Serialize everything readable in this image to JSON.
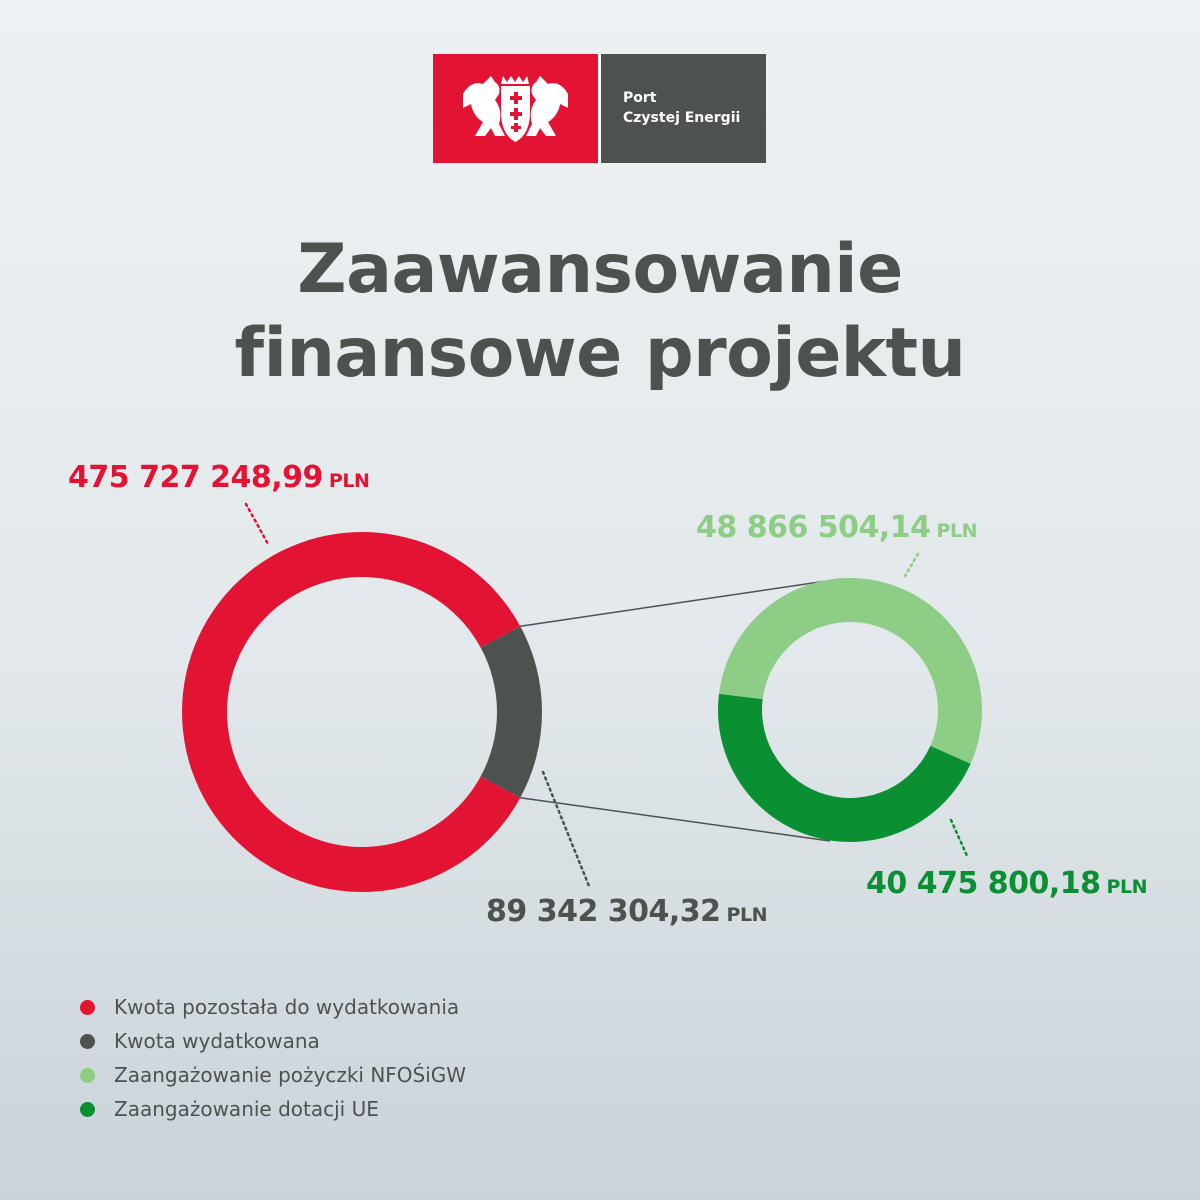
{
  "logo": {
    "line1": "Port",
    "line2": "Czystej Energii",
    "crest_icon": "gdansk-coat-of-arms"
  },
  "title": {
    "line1": "Zaawansowanie",
    "line2": "finansowe projektu"
  },
  "colors": {
    "red": "#e31334",
    "grey": "#4e524f",
    "light_green": "#8dcd85",
    "green": "#0b8f33"
  },
  "amounts": {
    "remaining": {
      "value": "475 727 248,99",
      "unit": "PLN"
    },
    "spent": {
      "value": "89 342 304,32",
      "unit": "PLN"
    },
    "loan": {
      "value": "48 866 504,14",
      "unit": "PLN"
    },
    "grant": {
      "value": "40 475 800,18",
      "unit": "PLN"
    }
  },
  "legend": [
    {
      "label": "Kwota pozostała do wydatkowania",
      "color": "#e31334"
    },
    {
      "label": "Kwota wydatkowana",
      "color": "#4e524f"
    },
    {
      "label": "Zaangażowanie pożyczki NFOŚiGW",
      "color": "#8dcd85"
    },
    {
      "label": "Zaangażowanie dotacji UE",
      "color": "#0b8f33"
    }
  ],
  "chart_data": [
    {
      "type": "pie",
      "categories": [
        "Kwota pozostała do wydatkowania",
        "Kwota wydatkowana"
      ],
      "values": [
        475727248.99,
        89342304.32
      ],
      "colors": [
        "#e31334",
        "#4e524f"
      ]
    },
    {
      "type": "pie",
      "categories": [
        "Zaangażowanie pożyczki NFOŚiGW",
        "Zaangażowanie dotacji UE"
      ],
      "values": [
        48866504.14,
        40475800.18
      ],
      "colors": [
        "#8dcd85",
        "#0b8f33"
      ]
    }
  ]
}
